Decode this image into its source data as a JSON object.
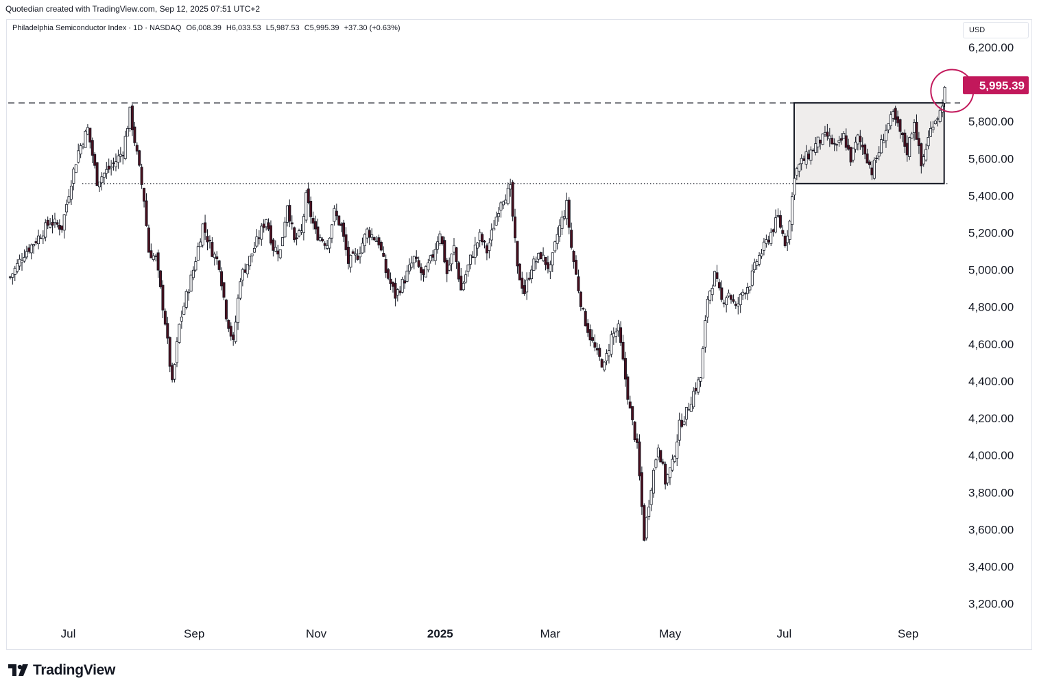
{
  "caption": "Quotedian created with TradingView.com, Sep 12, 2025 07:51 UTC+2",
  "legend": {
    "symbol": "Philadelphia Semiconductor Index · 1D · NASDAQ",
    "open": "O6,008.39",
    "high": "H6,033.53",
    "low": "L5,987.53",
    "close": "C5,995.39",
    "change": "+37.30 (+0.63%)"
  },
  "currency": "USD",
  "logo_text": "TradingView",
  "colors": {
    "up": "#ffffff",
    "down": "#4a0f1e",
    "wick": "#131722",
    "last_price_bg": "#c2185b",
    "circle": "#c2185b"
  },
  "chart_data": {
    "type": "candlestick",
    "y_axis": {
      "ticks": [
        3200,
        3400,
        3600,
        3800,
        4000,
        4200,
        4400,
        4600,
        4800,
        5000,
        5200,
        5400,
        5600,
        5800,
        6200
      ],
      "tick_labels": [
        "3,200.00",
        "3,400.00",
        "3,600.00",
        "3,800.00",
        "4,000.00",
        "4,200.00",
        "4,400.00",
        "4,600.00",
        "4,800.00",
        "5,000.00",
        "5,200.00",
        "5,400.00",
        "5,600.00",
        "5,800.00",
        "6,200.00"
      ],
      "range": [
        3110,
        6270
      ]
    },
    "x_axis": {
      "labels": [
        "Jul",
        "Sep",
        "Nov",
        "2025",
        "Mar",
        "May",
        "Jul",
        "Sep"
      ],
      "label_days": [
        30,
        93,
        154,
        216,
        271,
        331,
        388,
        450
      ]
    },
    "last_price": {
      "value": 5995.39,
      "label": "5,995.39"
    },
    "annotations": {
      "dashed_resistance": 5900,
      "dotted_support": 5465,
      "consolidation_box": {
        "from_day": 393,
        "to_day": 468,
        "low": 5465,
        "high": 5900
      },
      "circle": {
        "day": 472,
        "value": 5965
      }
    },
    "series_anchors": [
      [
        0,
        4960
      ],
      [
        6,
        5090
      ],
      [
        11,
        5160
      ],
      [
        17,
        5260
      ],
      [
        22,
        5230
      ],
      [
        26,
        5480
      ],
      [
        29,
        5640
      ],
      [
        33,
        5760
      ],
      [
        37,
        5480
      ],
      [
        44,
        5570
      ],
      [
        48,
        5640
      ],
      [
        51,
        5850
      ],
      [
        54,
        5620
      ],
      [
        57,
        5380
      ],
      [
        59,
        5100
      ],
      [
        62,
        5060
      ],
      [
        66,
        4720
      ],
      [
        69,
        4380
      ],
      [
        72,
        4700
      ],
      [
        75,
        4860
      ],
      [
        78,
        5000
      ],
      [
        82,
        5240
      ],
      [
        86,
        5100
      ],
      [
        89,
        5030
      ],
      [
        92,
        4760
      ],
      [
        95,
        4600
      ],
      [
        98,
        4960
      ],
      [
        102,
        5060
      ],
      [
        106,
        5180
      ],
      [
        109,
        5280
      ],
      [
        112,
        5120
      ],
      [
        115,
        5100
      ],
      [
        118,
        5360
      ],
      [
        121,
        5150
      ],
      [
        124,
        5200
      ],
      [
        126,
        5390
      ],
      [
        130,
        5200
      ],
      [
        135,
        5140
      ],
      [
        138,
        5310
      ],
      [
        141,
        5230
      ],
      [
        144,
        5040
      ],
      [
        148,
        5080
      ],
      [
        152,
        5210
      ],
      [
        157,
        5150
      ],
      [
        160,
        4990
      ],
      [
        164,
        4860
      ],
      [
        168,
        4950
      ],
      [
        172,
        5060
      ],
      [
        176,
        4960
      ],
      [
        180,
        5080
      ],
      [
        183,
        5210
      ],
      [
        186,
        4980
      ],
      [
        189,
        5120
      ],
      [
        192,
        4890
      ],
      [
        196,
        5060
      ],
      [
        200,
        5180
      ],
      [
        203,
        5100
      ],
      [
        206,
        5240
      ],
      [
        209,
        5380
      ],
      [
        213,
        5430
      ],
      [
        216,
        5000
      ],
      [
        219,
        4880
      ],
      [
        222,
        5020
      ],
      [
        226,
        5080
      ],
      [
        230,
        5000
      ],
      [
        233,
        5190
      ],
      [
        237,
        5350
      ],
      [
        239,
        5120
      ],
      [
        241,
        4970
      ],
      [
        244,
        4760
      ],
      [
        247,
        4640
      ],
      [
        250,
        4540
      ],
      [
        253,
        4480
      ],
      [
        256,
        4640
      ],
      [
        259,
        4680
      ],
      [
        261,
        4500
      ],
      [
        264,
        4240
      ],
      [
        267,
        4040
      ],
      [
        270,
        3560
      ],
      [
        273,
        3840
      ],
      [
        276,
        4060
      ],
      [
        279,
        3860
      ],
      [
        282,
        3950
      ],
      [
        285,
        4160
      ],
      [
        288,
        4230
      ],
      [
        291,
        4340
      ],
      [
        294,
        4420
      ],
      [
        297,
        4850
      ],
      [
        300,
        4970
      ],
      [
        303,
        4830
      ],
      [
        306,
        4880
      ],
      [
        309,
        4790
      ],
      [
        312,
        4880
      ],
      [
        315,
        4930
      ],
      [
        318,
        5050
      ],
      [
        321,
        5120
      ],
      [
        324,
        5200
      ],
      [
        327,
        5280
      ],
      [
        330,
        5150
      ],
      [
        332,
        5260
      ],
      [
        334,
        5520
      ],
      [
        337,
        5580
      ],
      [
        340,
        5620
      ],
      [
        344,
        5690
      ],
      [
        348,
        5720
      ],
      [
        352,
        5650
      ],
      [
        355,
        5720
      ],
      [
        358,
        5600
      ],
      [
        361,
        5710
      ],
      [
        364,
        5640
      ],
      [
        367,
        5530
      ],
      [
        370,
        5640
      ],
      [
        373,
        5760
      ],
      [
        376,
        5830
      ],
      [
        379,
        5740
      ],
      [
        382,
        5640
      ],
      [
        385,
        5810
      ],
      [
        388,
        5560
      ],
      [
        390,
        5660
      ],
      [
        393,
        5800
      ],
      [
        396,
        5850
      ],
      [
        398,
        5965
      ]
    ]
  }
}
